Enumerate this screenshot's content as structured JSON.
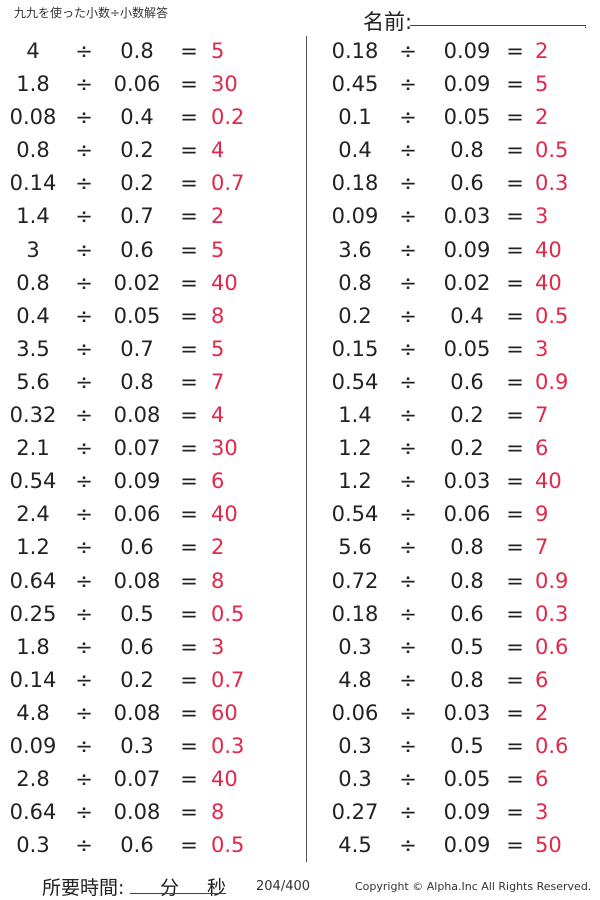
{
  "header": {
    "title": "九九を使った小数÷小数解答",
    "name_label": "名前:"
  },
  "operator": "÷",
  "equals": "=",
  "left_problems": [
    {
      "a": "4",
      "b": "0.8",
      "ans": "5"
    },
    {
      "a": "1.8",
      "b": "0.06",
      "ans": "30"
    },
    {
      "a": "0.08",
      "b": "0.4",
      "ans": "0.2"
    },
    {
      "a": "0.8",
      "b": "0.2",
      "ans": "4"
    },
    {
      "a": "0.14",
      "b": "0.2",
      "ans": "0.7"
    },
    {
      "a": "1.4",
      "b": "0.7",
      "ans": "2"
    },
    {
      "a": "3",
      "b": "0.6",
      "ans": "5"
    },
    {
      "a": "0.8",
      "b": "0.02",
      "ans": "40"
    },
    {
      "a": "0.4",
      "b": "0.05",
      "ans": "8"
    },
    {
      "a": "3.5",
      "b": "0.7",
      "ans": "5"
    },
    {
      "a": "5.6",
      "b": "0.8",
      "ans": "7"
    },
    {
      "a": "0.32",
      "b": "0.08",
      "ans": "4"
    },
    {
      "a": "2.1",
      "b": "0.07",
      "ans": "30"
    },
    {
      "a": "0.54",
      "b": "0.09",
      "ans": "6"
    },
    {
      "a": "2.4",
      "b": "0.06",
      "ans": "40"
    },
    {
      "a": "1.2",
      "b": "0.6",
      "ans": "2"
    },
    {
      "a": "0.64",
      "b": "0.08",
      "ans": "8"
    },
    {
      "a": "0.25",
      "b": "0.5",
      "ans": "0.5"
    },
    {
      "a": "1.8",
      "b": "0.6",
      "ans": "3"
    },
    {
      "a": "0.14",
      "b": "0.2",
      "ans": "0.7"
    },
    {
      "a": "4.8",
      "b": "0.08",
      "ans": "60"
    },
    {
      "a": "0.09",
      "b": "0.3",
      "ans": "0.3"
    },
    {
      "a": "2.8",
      "b": "0.07",
      "ans": "40"
    },
    {
      "a": "0.64",
      "b": "0.08",
      "ans": "8"
    },
    {
      "a": "0.3",
      "b": "0.6",
      "ans": "0.5"
    }
  ],
  "right_problems": [
    {
      "a": "0.18",
      "b": "0.09",
      "ans": "2"
    },
    {
      "a": "0.45",
      "b": "0.09",
      "ans": "5"
    },
    {
      "a": "0.1",
      "b": "0.05",
      "ans": "2"
    },
    {
      "a": "0.4",
      "b": "0.8",
      "ans": "0.5"
    },
    {
      "a": "0.18",
      "b": "0.6",
      "ans": "0.3"
    },
    {
      "a": "0.09",
      "b": "0.03",
      "ans": "3"
    },
    {
      "a": "3.6",
      "b": "0.09",
      "ans": "40"
    },
    {
      "a": "0.8",
      "b": "0.02",
      "ans": "40"
    },
    {
      "a": "0.2",
      "b": "0.4",
      "ans": "0.5"
    },
    {
      "a": "0.15",
      "b": "0.05",
      "ans": "3"
    },
    {
      "a": "0.54",
      "b": "0.6",
      "ans": "0.9"
    },
    {
      "a": "1.4",
      "b": "0.2",
      "ans": "7"
    },
    {
      "a": "1.2",
      "b": "0.2",
      "ans": "6"
    },
    {
      "a": "1.2",
      "b": "0.03",
      "ans": "40"
    },
    {
      "a": "0.54",
      "b": "0.06",
      "ans": "9"
    },
    {
      "a": "5.6",
      "b": "0.8",
      "ans": "7"
    },
    {
      "a": "0.72",
      "b": "0.8",
      "ans": "0.9"
    },
    {
      "a": "0.18",
      "b": "0.6",
      "ans": "0.3"
    },
    {
      "a": "0.3",
      "b": "0.5",
      "ans": "0.6"
    },
    {
      "a": "4.8",
      "b": "0.8",
      "ans": "6"
    },
    {
      "a": "0.06",
      "b": "0.03",
      "ans": "2"
    },
    {
      "a": "0.3",
      "b": "0.5",
      "ans": "0.6"
    },
    {
      "a": "0.3",
      "b": "0.05",
      "ans": "6"
    },
    {
      "a": "0.27",
      "b": "0.09",
      "ans": "3"
    },
    {
      "a": "4.5",
      "b": "0.09",
      "ans": "50"
    }
  ],
  "footer": {
    "time_label": "所要時間:",
    "minutes_label": "分",
    "seconds_label": "秒",
    "page_number": "204/400",
    "copyright": "Copyright © Alpha.Inc All Rights Reserved."
  },
  "colors": {
    "answer": "#e0284a"
  }
}
